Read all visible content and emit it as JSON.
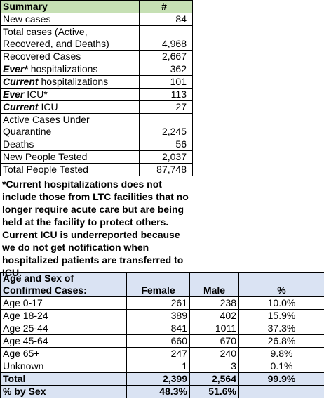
{
  "summary": {
    "header": [
      "Summary",
      "#"
    ],
    "rows": [
      {
        "label": "New cases",
        "value": "84"
      },
      {
        "label": "Total cases (Active, Recovered, and Deaths)",
        "value": "4,968"
      },
      {
        "label": "Recovered Cases",
        "value": "2,667"
      },
      {
        "emph": "Ever*",
        "label": " hospitalizations",
        "value": "362"
      },
      {
        "emph": "Current",
        "label": " hospitalizations",
        "value": "101"
      },
      {
        "emph": "Ever",
        "label": " ICU*",
        "value": "113"
      },
      {
        "emph": "Current",
        "label": " ICU",
        "value": "27"
      },
      {
        "label": "Active Cases Under Quarantine",
        "value": "2,245"
      },
      {
        "label": "Deaths",
        "value": "56"
      },
      {
        "label": "New People Tested",
        "value": "2,037"
      },
      {
        "label": "Total People Tested",
        "value": "87,748"
      }
    ],
    "note": "*Current hospitalizations does not include those from LTC facilities that no longer require acute care but are being held at the facility to protect others.  Current ICU is underreported because we do not get notification when hospitalized patients are transferred to ICU."
  },
  "demographics": {
    "header": [
      "Age and Sex of Confirmed Cases:",
      "Female",
      "Male",
      "%"
    ],
    "rows": [
      [
        "Age 0-17",
        "261",
        "238",
        "10.0%"
      ],
      [
        "Age 18-24",
        "389",
        "402",
        "15.9%"
      ],
      [
        "Age 25-44",
        "841",
        "1011",
        "37.3%"
      ],
      [
        "Age 45-64",
        "660",
        "670",
        "26.8%"
      ],
      [
        "Age 65+",
        "247",
        "240",
        "9.8%"
      ],
      [
        "Unknown",
        "1",
        "3",
        "0.1%"
      ],
      [
        "Total",
        "2,399",
        "2,564",
        "99.9%"
      ],
      [
        "% by Sex",
        "48.3%",
        "51.6%",
        ""
      ]
    ]
  }
}
